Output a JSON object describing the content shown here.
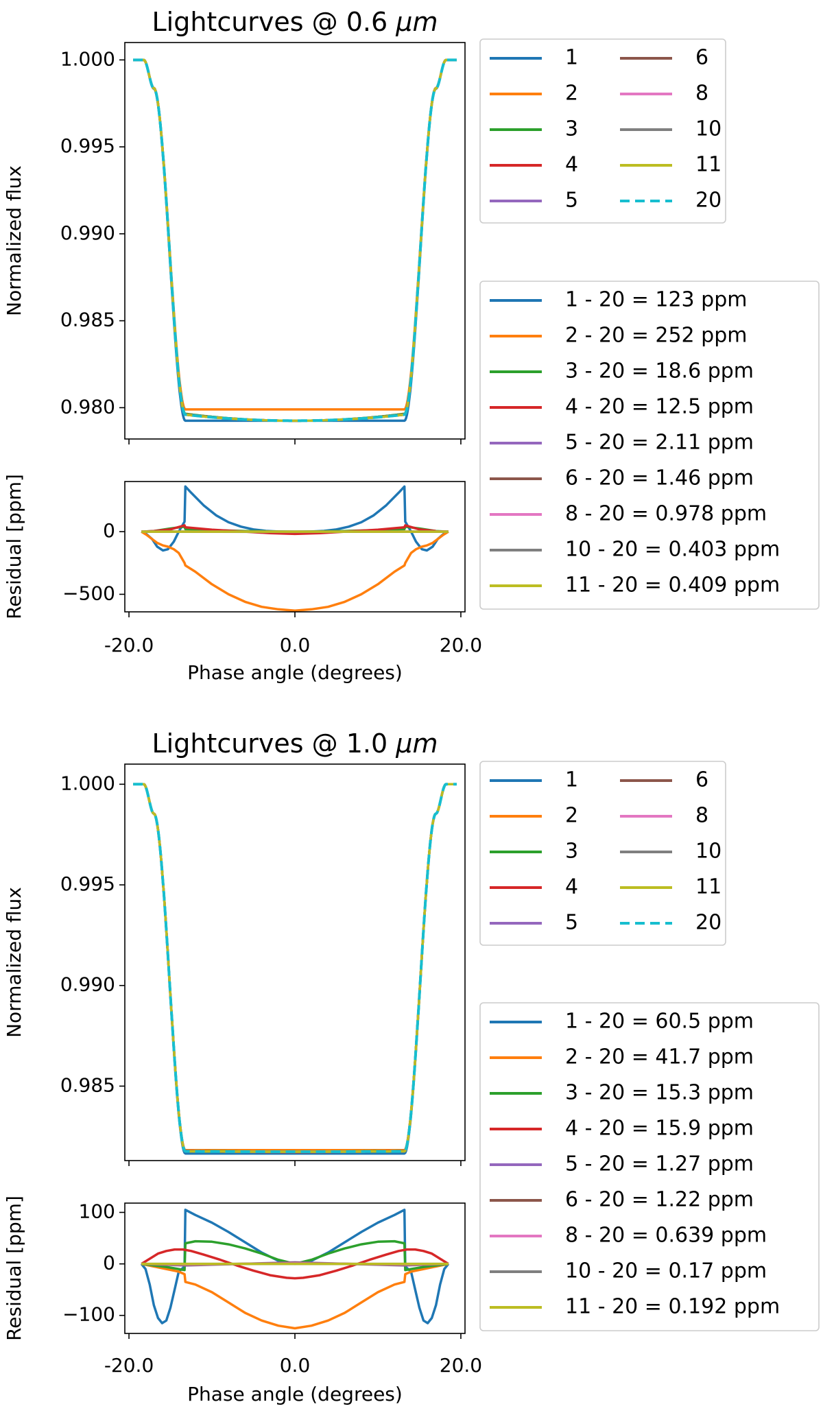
{
  "figure": {
    "x_axis_label": "Phase angle (degrees)",
    "flux_axis_label": "Normalized flux",
    "residual_axis_label": "Residual [ppm]"
  },
  "colors": {
    "1": "#1f77b4",
    "2": "#ff7f0e",
    "3": "#2ca02c",
    "4": "#d62728",
    "5": "#9467bd",
    "6": "#8c564b",
    "8": "#e377c2",
    "10": "#7f7f7f",
    "11": "#bcbd22",
    "20": "#17becf"
  },
  "chart_data": [
    {
      "type": "line",
      "title": "Lightcurves @ 0.6 μm",
      "title_prefix": "Lightcurves @ 0.6 ",
      "title_unit": "μm",
      "xlabel": "Phase angle (degrees)",
      "xlim": [
        -20.5,
        20.5
      ],
      "flux": {
        "ylabel": "Normalized flux",
        "ylim": [
          0.9782,
          1.001
        ],
        "yticks": [
          0.98,
          0.985,
          0.99,
          0.995,
          1.0
        ],
        "ytick_labels": [
          "0.980",
          "0.985",
          "0.990",
          "0.995",
          "1.000"
        ],
        "contact_phases": [
          -18.2,
          -17.0,
          -13.2,
          13.2,
          17.0,
          18.2
        ],
        "series": [
          {
            "name": "1",
            "baseline": 1.0,
            "floor": 0.97925,
            "center": 0.97925
          },
          {
            "name": "2",
            "baseline": 1.0,
            "floor": 0.9799,
            "center": 0.9799
          },
          {
            "name": "3",
            "baseline": 1.0,
            "floor": 0.97965,
            "center": 0.97925
          },
          {
            "name": "4",
            "baseline": 1.0,
            "floor": 0.97962,
            "center": 0.97925
          },
          {
            "name": "5",
            "baseline": 1.0,
            "floor": 0.9796,
            "center": 0.97925
          },
          {
            "name": "6",
            "baseline": 1.0,
            "floor": 0.9796,
            "center": 0.97925
          },
          {
            "name": "8",
            "baseline": 1.0,
            "floor": 0.9796,
            "center": 0.97925
          },
          {
            "name": "10",
            "baseline": 1.0,
            "floor": 0.9796,
            "center": 0.97925
          },
          {
            "name": "11",
            "baseline": 1.0,
            "floor": 0.9796,
            "center": 0.97925
          },
          {
            "name": "20",
            "baseline": 1.0,
            "floor": 0.9796,
            "center": 0.97925,
            "dashed": true
          }
        ]
      },
      "residual": {
        "ylabel": "Residual [ppm]",
        "ylim": [
          -640,
          400
        ],
        "yticks": [
          -500,
          0
        ],
        "ytick_labels": [
          "−500",
          "0"
        ],
        "series": [
          {
            "name": "1",
            "x": [
              -18.5,
              -17.9,
              -17.2,
              -16.6,
              -15.9,
              -15.3,
              -14.6,
              -14.0,
              -13.3,
              -13.2,
              -12.5,
              -11.0,
              -9.5,
              -8.0,
              -6.5,
              -5.0,
              -3.5,
              -2.0,
              -1.0,
              0,
              1.0,
              2.0,
              3.5,
              5.0,
              6.5,
              8.0,
              9.5,
              11.0,
              12.5,
              13.2,
              13.3,
              14.0,
              14.6,
              15.3,
              15.9,
              16.6,
              17.2,
              17.9,
              18.5
            ],
            "y": [
              0,
              -20,
              -60,
              -120,
              -150,
              -140,
              -80,
              0,
              80,
              360,
              310,
              210,
              130,
              75,
              40,
              18,
              6,
              1,
              0,
              0,
              0,
              1,
              6,
              18,
              40,
              75,
              130,
              210,
              310,
              360,
              80,
              0,
              -80,
              -140,
              -150,
              -120,
              -60,
              -20,
              0
            ]
          },
          {
            "name": "2",
            "x": [
              -18.5,
              -17.9,
              -17.2,
              -16.6,
              -15.9,
              -15.3,
              -14.6,
              -14.0,
              -13.3,
              -13.2,
              -12.0,
              -10.0,
              -8.0,
              -6.0,
              -4.0,
              -2.0,
              0,
              2.0,
              4.0,
              6.0,
              8.0,
              10.0,
              12.0,
              13.2,
              13.3,
              14.0,
              14.6,
              15.3,
              15.9,
              16.6,
              17.2,
              17.9,
              18.5
            ],
            "y": [
              0,
              -25,
              -60,
              -90,
              -110,
              -120,
              -140,
              -170,
              -250,
              -270,
              -320,
              -420,
              -500,
              -560,
              -600,
              -620,
              -630,
              -620,
              -600,
              -560,
              -500,
              -420,
              -320,
              -270,
              -250,
              -170,
              -140,
              -120,
              -110,
              -90,
              -60,
              -25,
              0
            ]
          },
          {
            "name": "3",
            "x": [
              -18.5,
              -17.0,
              -15.0,
              -13.3,
              -13.2,
              -10.0,
              -6.0,
              -3.0,
              0,
              3.0,
              6.0,
              10.0,
              13.2,
              13.3,
              15.0,
              17.0,
              18.5
            ],
            "y": [
              0,
              5,
              25,
              40,
              20,
              12,
              5,
              2,
              0,
              2,
              5,
              12,
              20,
              40,
              25,
              5,
              0
            ]
          },
          {
            "name": "4",
            "x": [
              -18.5,
              -17.0,
              -15.0,
              -13.3,
              -13.2,
              -10.0,
              -6.0,
              -3.0,
              0,
              3.0,
              6.0,
              10.0,
              13.2,
              13.3,
              15.0,
              17.0,
              18.5
            ],
            "y": [
              0,
              4,
              18,
              50,
              35,
              15,
              0,
              -12,
              -18,
              -12,
              0,
              15,
              35,
              50,
              18,
              4,
              0
            ]
          },
          {
            "name": "5",
            "x": [
              -18.5,
              0,
              18.5
            ],
            "y": [
              0,
              -2,
              0
            ]
          },
          {
            "name": "6",
            "x": [
              -18.5,
              0,
              18.5
            ],
            "y": [
              0,
              -1,
              0
            ]
          },
          {
            "name": "8",
            "x": [
              -18.5,
              0,
              18.5
            ],
            "y": [
              0,
              0,
              0
            ]
          },
          {
            "name": "10",
            "x": [
              -18.5,
              0,
              18.5
            ],
            "y": [
              0,
              0,
              0
            ]
          },
          {
            "name": "11",
            "x": [
              -18.5,
              0,
              18.5
            ],
            "y": [
              0,
              0,
              0
            ]
          }
        ]
      },
      "legend_main": [
        "1",
        "2",
        "3",
        "4",
        "5",
        "6",
        "8",
        "10",
        "11",
        "20"
      ],
      "legend_residual": [
        {
          "key": "1",
          "label": "1 - 20 = 123 ppm"
        },
        {
          "key": "2",
          "label": "2 - 20 = 252 ppm"
        },
        {
          "key": "3",
          "label": "3 - 20 = 18.6 ppm"
        },
        {
          "key": "4",
          "label": "4 - 20 = 12.5 ppm"
        },
        {
          "key": "5",
          "label": "5 - 20 = 2.11 ppm"
        },
        {
          "key": "6",
          "label": "6 - 20 = 1.46 ppm"
        },
        {
          "key": "8",
          "label": "8 - 20 = 0.978 ppm"
        },
        {
          "key": "10",
          "label": "10 - 20 = 0.403 ppm"
        },
        {
          "key": "11",
          "label": "11 - 20 = 0.409 ppm"
        }
      ],
      "xticks": [
        -20,
        0,
        20
      ],
      "xtick_labels": [
        "-20.0",
        "0.0",
        "20.0"
      ]
    },
    {
      "type": "line",
      "title": "Lightcurves @ 1.0 μm",
      "title_prefix": "Lightcurves @ 1.0 ",
      "title_unit": "μm",
      "xlabel": "Phase angle (degrees)",
      "xlim": [
        -20.5,
        20.5
      ],
      "flux": {
        "ylabel": "Normalized flux",
        "ylim": [
          0.9813,
          1.001
        ],
        "yticks": [
          0.985,
          0.99,
          0.995,
          1.0
        ],
        "ytick_labels": [
          "0.985",
          "0.990",
          "0.995",
          "1.000"
        ],
        "contact_phases": [
          -18.2,
          -17.0,
          -13.2,
          13.2,
          17.0,
          18.2
        ],
        "series": [
          {
            "name": "1",
            "baseline": 1.0,
            "floor": 0.98165,
            "center": 0.98165
          },
          {
            "name": "2",
            "baseline": 1.0,
            "floor": 0.98182,
            "center": 0.98182
          },
          {
            "name": "3",
            "baseline": 1.0,
            "floor": 0.98178,
            "center": 0.98175
          },
          {
            "name": "4",
            "baseline": 1.0,
            "floor": 0.98178,
            "center": 0.98172
          },
          {
            "name": "5",
            "baseline": 1.0,
            "floor": 0.98176,
            "center": 0.98174
          },
          {
            "name": "6",
            "baseline": 1.0,
            "floor": 0.98176,
            "center": 0.98174
          },
          {
            "name": "8",
            "baseline": 1.0,
            "floor": 0.98176,
            "center": 0.98174
          },
          {
            "name": "10",
            "baseline": 1.0,
            "floor": 0.98176,
            "center": 0.98174
          },
          {
            "name": "11",
            "baseline": 1.0,
            "floor": 0.98176,
            "center": 0.98174
          },
          {
            "name": "20",
            "baseline": 1.0,
            "floor": 0.98176,
            "center": 0.98174,
            "dashed": true
          }
        ]
      },
      "residual": {
        "ylabel": "Residual [ppm]",
        "ylim": [
          -135,
          118
        ],
        "yticks": [
          -100,
          0,
          100
        ],
        "ytick_labels": [
          "−100",
          "0",
          "100"
        ],
        "series": [
          {
            "name": "1",
            "x": [
              -18.5,
              -18.0,
              -17.5,
              -17.0,
              -16.5,
              -16.0,
              -15.5,
              -15.0,
              -14.5,
              -14.0,
              -13.3,
              -13.2,
              -12.0,
              -10.0,
              -8.0,
              -6.0,
              -4.0,
              -2.0,
              0,
              2.0,
              4.0,
              6.0,
              8.0,
              10.0,
              12.0,
              13.2,
              13.3,
              14.0,
              14.5,
              15.0,
              15.5,
              16.0,
              16.5,
              17.0,
              17.5,
              18.0,
              18.5
            ],
            "y": [
              0,
              -10,
              -40,
              -80,
              -105,
              -115,
              -110,
              -85,
              -50,
              -15,
              -5,
              105,
              95,
              80,
              62,
              42,
              22,
              6,
              0,
              6,
              22,
              42,
              62,
              80,
              95,
              105,
              -5,
              -15,
              -50,
              -85,
              -110,
              -115,
              -105,
              -80,
              -40,
              -10,
              0
            ]
          },
          {
            "name": "2",
            "x": [
              -18.5,
              -17.0,
              -15.5,
              -14.0,
              -13.3,
              -13.2,
              -12.0,
              -10.0,
              -8.0,
              -6.0,
              -4.0,
              -2.0,
              0,
              2.0,
              4.0,
              6.0,
              8.0,
              10.0,
              12.0,
              13.2,
              13.3,
              14.0,
              15.5,
              17.0,
              18.5
            ],
            "y": [
              0,
              -5,
              -10,
              -15,
              -20,
              -35,
              -40,
              -55,
              -75,
              -95,
              -110,
              -120,
              -125,
              -120,
              -110,
              -95,
              -75,
              -55,
              -40,
              -35,
              -20,
              -15,
              -10,
              -5,
              0
            ]
          },
          {
            "name": "3",
            "x": [
              -18.5,
              -17.0,
              -15.5,
              -14.0,
              -13.3,
              -13.2,
              -12.0,
              -10.0,
              -8.0,
              -6.0,
              -4.0,
              -2.0,
              0,
              2.0,
              4.0,
              6.0,
              8.0,
              10.0,
              12.0,
              13.2,
              13.3,
              14.0,
              15.5,
              17.0,
              18.5
            ],
            "y": [
              0,
              -3,
              -6,
              -10,
              -12,
              40,
              44,
              43,
              38,
              30,
              20,
              8,
              0,
              8,
              20,
              30,
              38,
              43,
              44,
              40,
              -12,
              -10,
              -6,
              -3,
              0
            ]
          },
          {
            "name": "4",
            "x": [
              -18.5,
              -17.5,
              -16.5,
              -15.5,
              -14.5,
              -13.5,
              -12.5,
              -11.0,
              -9.0,
              -7.0,
              -5.0,
              -3.0,
              -1.0,
              0,
              1.0,
              3.0,
              5.0,
              7.0,
              9.0,
              11.0,
              12.5,
              13.5,
              14.5,
              15.5,
              16.5,
              17.5,
              18.5
            ],
            "y": [
              0,
              10,
              20,
              25,
              28,
              28,
              25,
              18,
              8,
              -3,
              -13,
              -22,
              -27,
              -28,
              -27,
              -22,
              -13,
              -3,
              8,
              18,
              25,
              28,
              28,
              25,
              20,
              10,
              0
            ]
          },
          {
            "name": "5",
            "x": [
              -18.5,
              -13.2,
              0,
              13.2,
              18.5
            ],
            "y": [
              0,
              -3,
              3,
              -3,
              0
            ]
          },
          {
            "name": "6",
            "x": [
              -18.5,
              -13.2,
              0,
              13.2,
              18.5
            ],
            "y": [
              0,
              -2,
              2,
              -2,
              0
            ]
          },
          {
            "name": "8",
            "x": [
              -18.5,
              -13.2,
              0,
              13.2,
              18.5
            ],
            "y": [
              0,
              -1,
              1,
              -1,
              0
            ]
          },
          {
            "name": "10",
            "x": [
              -18.5,
              0,
              18.5
            ],
            "y": [
              0,
              0,
              0
            ]
          },
          {
            "name": "11",
            "x": [
              -18.5,
              0,
              18.5
            ],
            "y": [
              0,
              0,
              0
            ]
          }
        ]
      },
      "legend_main": [
        "1",
        "2",
        "3",
        "4",
        "5",
        "6",
        "8",
        "10",
        "11",
        "20"
      ],
      "legend_residual": [
        {
          "key": "1",
          "label": "1 - 20 = 60.5 ppm"
        },
        {
          "key": "2",
          "label": "2 - 20 = 41.7 ppm"
        },
        {
          "key": "3",
          "label": "3 - 20 = 15.3 ppm"
        },
        {
          "key": "4",
          "label": "4 - 20 = 15.9 ppm"
        },
        {
          "key": "5",
          "label": "5 - 20 = 1.27 ppm"
        },
        {
          "key": "6",
          "label": "6 - 20 = 1.22 ppm"
        },
        {
          "key": "8",
          "label": "8 - 20 = 0.639 ppm"
        },
        {
          "key": "10",
          "label": "10 - 20 = 0.17 ppm"
        },
        {
          "key": "11",
          "label": "11 - 20 = 0.192 ppm"
        }
      ],
      "xticks": [
        -20,
        0,
        20
      ],
      "xtick_labels": [
        "-20.0",
        "0.0",
        "20.0"
      ]
    }
  ]
}
